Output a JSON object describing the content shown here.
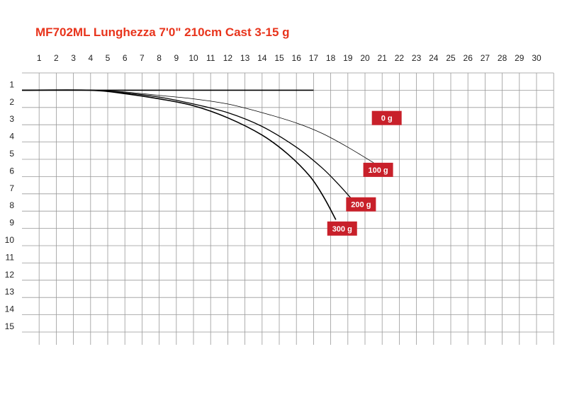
{
  "title": "MF702ML Lunghezza 7'0\" 210cm Cast 3-15 g",
  "chart_data": {
    "type": "line",
    "title": "MF702ML Lunghezza 7'0\" 210cm Cast 3-15 g",
    "xlabel": "",
    "ylabel": "",
    "x_ticks": [
      "1",
      "2",
      "3",
      "4",
      "5",
      "6",
      "7",
      "8",
      "9",
      "10",
      "11",
      "12",
      "13",
      "14",
      "15",
      "16",
      "17",
      "18",
      "19",
      "20",
      "21",
      "22",
      "23",
      "24",
      "25",
      "26",
      "27",
      "28",
      "29",
      "30"
    ],
    "y_ticks": [
      "1",
      "2",
      "3",
      "4",
      "5",
      "6",
      "7",
      "8",
      "9",
      "10",
      "11",
      "12",
      "13",
      "14",
      "15"
    ],
    "xlim": [
      0,
      30
    ],
    "ylim": [
      0,
      15
    ],
    "y_inverted": true,
    "grid": true,
    "colors": {
      "title": "#e8341c",
      "label_bg": "#c8202a",
      "curve": "#000000",
      "grid": "#999999"
    },
    "series": [
      {
        "name": "0 g",
        "points": [
          [
            0,
            1
          ],
          [
            5,
            1
          ],
          [
            10,
            1
          ],
          [
            15,
            1
          ],
          [
            17,
            1
          ]
        ]
      },
      {
        "name": "100 g",
        "points": [
          [
            0,
            1
          ],
          [
            4,
            1
          ],
          [
            6,
            1.1
          ],
          [
            8,
            1.3
          ],
          [
            10,
            1.5
          ],
          [
            12,
            1.8
          ],
          [
            14,
            2.3
          ],
          [
            16,
            2.9
          ],
          [
            17.5,
            3.5
          ],
          [
            19,
            4.3
          ],
          [
            20.5,
            5.2
          ]
        ]
      },
      {
        "name": "200 g",
        "points": [
          [
            0,
            1
          ],
          [
            4,
            1
          ],
          [
            6,
            1.15
          ],
          [
            8,
            1.4
          ],
          [
            10,
            1.8
          ],
          [
            12,
            2.3
          ],
          [
            14,
            3.1
          ],
          [
            16,
            4.3
          ],
          [
            17.5,
            5.5
          ],
          [
            18.5,
            6.5
          ],
          [
            19.4,
            7.5
          ]
        ]
      },
      {
        "name": "300 g",
        "points": [
          [
            0,
            1
          ],
          [
            4,
            1
          ],
          [
            6,
            1.2
          ],
          [
            8,
            1.5
          ],
          [
            10,
            1.9
          ],
          [
            12,
            2.6
          ],
          [
            14,
            3.6
          ],
          [
            15.5,
            4.7
          ],
          [
            16.8,
            6
          ],
          [
            17.6,
            7.2
          ],
          [
            18.3,
            8.5
          ]
        ]
      }
    ],
    "labels": [
      {
        "text": "0 g",
        "x": 20.4,
        "y": 2.2
      },
      {
        "text": "100 g",
        "x": 19.9,
        "y": 5.2
      },
      {
        "text": "200 g",
        "x": 18.9,
        "y": 7.2
      },
      {
        "text": "300 g",
        "x": 17.8,
        "y": 8.6
      }
    ]
  }
}
